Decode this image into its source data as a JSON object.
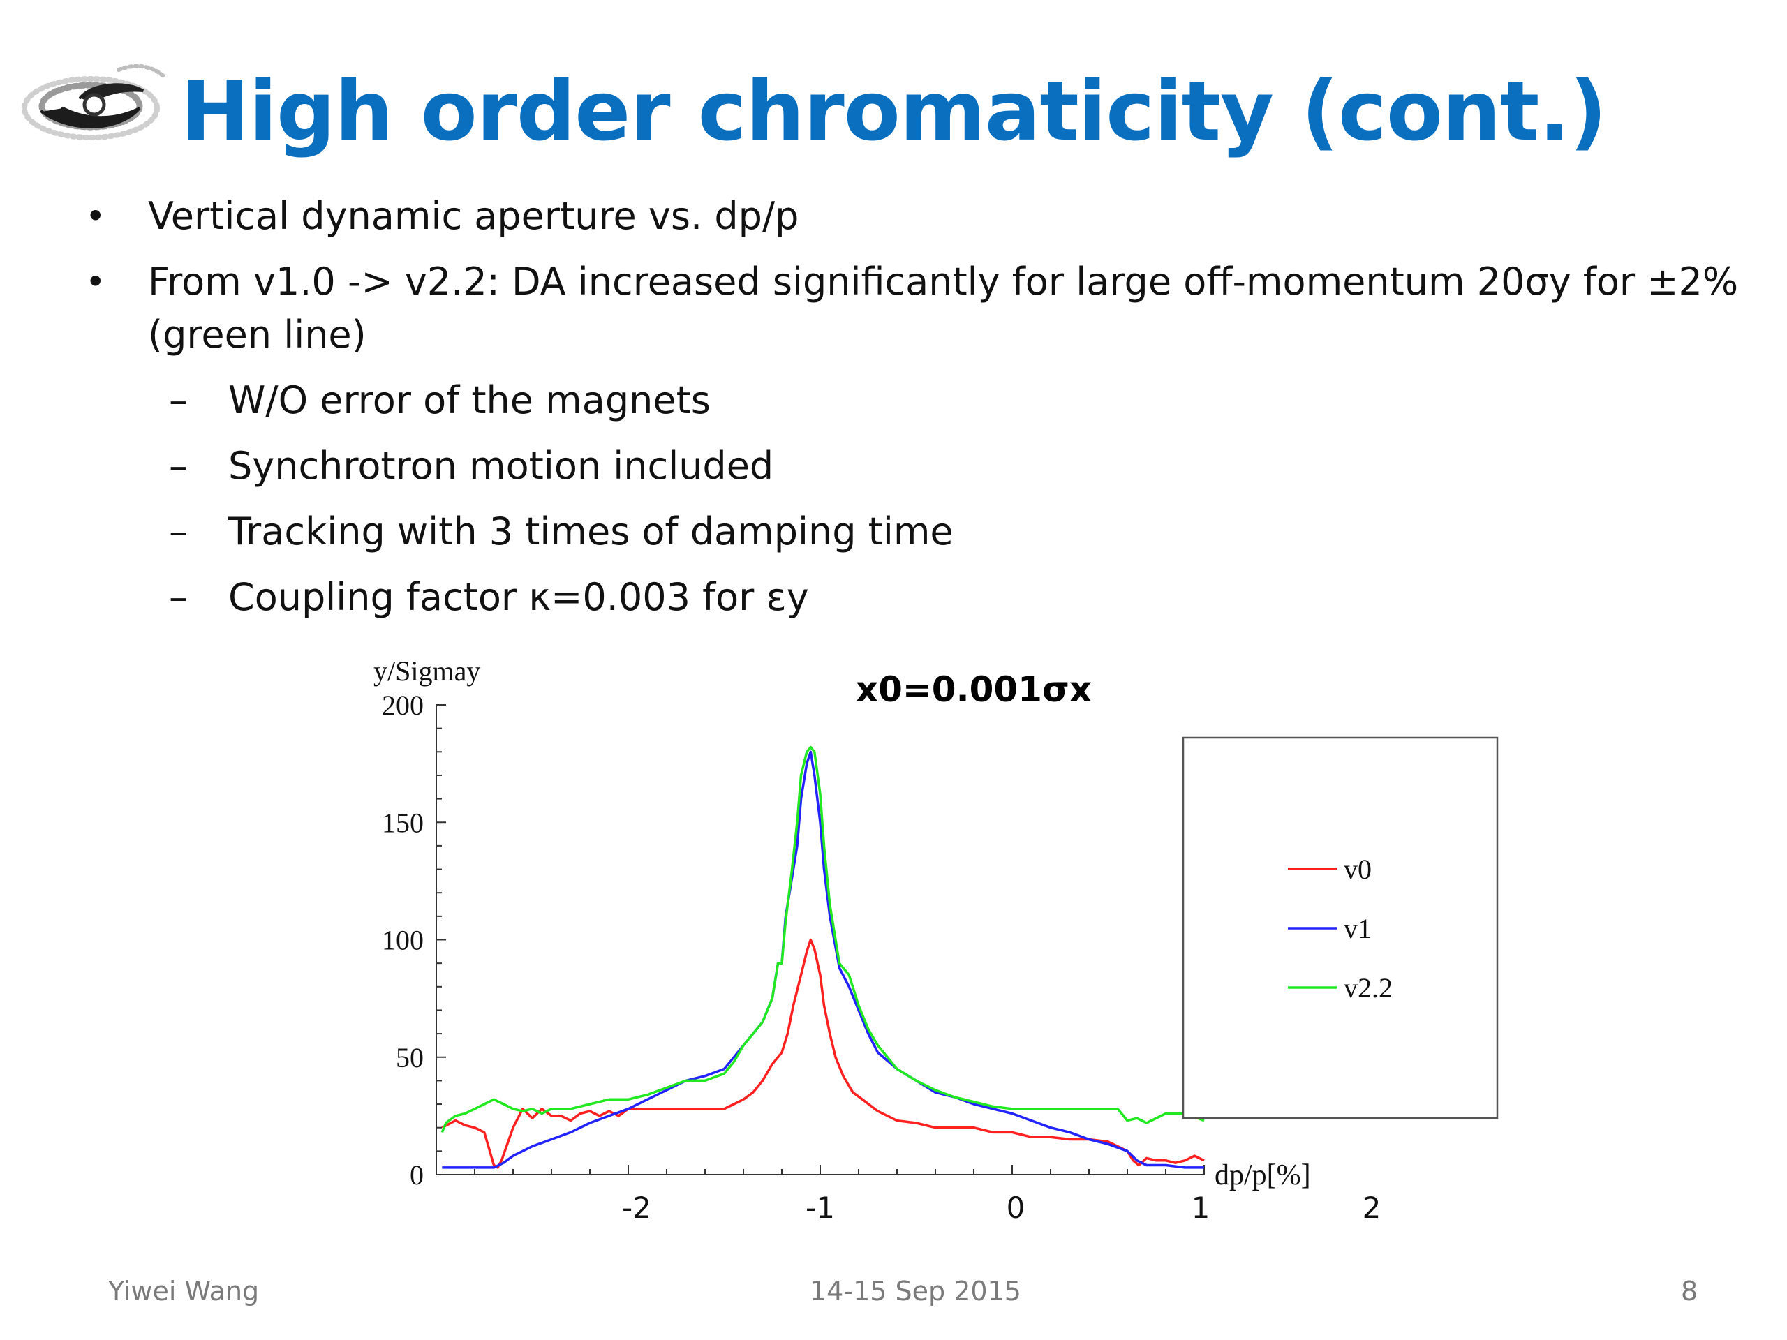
{
  "slide": {
    "title": "High order chromaticity (cont.)",
    "bullets": [
      {
        "text": "Vertical dynamic aperture vs. dp/p"
      },
      {
        "text": "From v1.0 -> v2.2: DA increased significantly for large off-momentum 20σy for ±2%",
        "continuation": "(green line)"
      }
    ],
    "sub_bullets": [
      "W/O error of the magnets",
      "Synchrotron motion included",
      "Tracking with 3 times of damping time",
      "Coupling factor κ=0.003 for εy"
    ],
    "bullet_mark": "•",
    "sub_mark": "–"
  },
  "footer": {
    "author": "Yiwei Wang",
    "date": "14-15 Sep 2015",
    "page": "8"
  },
  "colors": {
    "title": "#0b6fc0",
    "v0": "#ff2020",
    "v1": "#2323ff",
    "v2_2": "#22e822"
  },
  "chart_data": {
    "type": "line",
    "title": "x0=0.001σx",
    "xlabel": "dp/p[%]",
    "ylabel": "y/Sigmay",
    "xlim": [
      -3.0,
      1.0
    ],
    "ylim": [
      0,
      200
    ],
    "x_ticks": [
      -2,
      -1,
      0,
      1,
      2
    ],
    "y_ticks": [
      0,
      50,
      100,
      150,
      200
    ],
    "legend_position": "right",
    "series": [
      {
        "name": "v0",
        "color": "#ff2020",
        "x": [
          -2.97,
          -2.9,
          -2.85,
          -2.8,
          -2.75,
          -2.7,
          -2.68,
          -2.66,
          -2.6,
          -2.55,
          -2.5,
          -2.45,
          -2.4,
          -2.35,
          -2.3,
          -2.25,
          -2.2,
          -2.15,
          -2.1,
          -2.05,
          -2.0,
          -1.9,
          -1.8,
          -1.7,
          -1.6,
          -1.5,
          -1.45,
          -1.4,
          -1.35,
          -1.3,
          -1.25,
          -1.2,
          -1.17,
          -1.14,
          -1.1,
          -1.07,
          -1.05,
          -1.03,
          -1.0,
          -0.98,
          -0.95,
          -0.92,
          -0.88,
          -0.83,
          -0.78,
          -0.7,
          -0.6,
          -0.5,
          -0.4,
          -0.3,
          -0.2,
          -0.1,
          0.0,
          0.1,
          0.2,
          0.3,
          0.4,
          0.5,
          0.55,
          0.6,
          0.63,
          0.66,
          0.7,
          0.75,
          0.8,
          0.85,
          0.9,
          0.95,
          1.0
        ],
        "y": [
          20,
          23,
          21,
          20,
          18,
          4,
          3,
          6,
          20,
          28,
          24,
          28,
          25,
          25,
          23,
          26,
          27,
          25,
          27,
          25,
          28,
          28,
          28,
          28,
          28,
          28,
          30,
          32,
          35,
          40,
          47,
          52,
          60,
          72,
          85,
          95,
          100,
          96,
          85,
          72,
          60,
          50,
          42,
          35,
          32,
          27,
          23,
          22,
          20,
          20,
          20,
          18,
          18,
          16,
          16,
          15,
          15,
          14,
          12,
          10,
          6,
          4,
          7,
          6,
          6,
          5,
          6,
          8,
          6
        ]
      },
      {
        "name": "v1",
        "color": "#2323ff",
        "x": [
          -2.97,
          -2.8,
          -2.7,
          -2.65,
          -2.6,
          -2.55,
          -2.5,
          -2.4,
          -2.3,
          -2.2,
          -2.1,
          -2.0,
          -1.9,
          -1.8,
          -1.7,
          -1.6,
          -1.5,
          -1.45,
          -1.4,
          -1.35,
          -1.3,
          -1.25,
          -1.22,
          -1.2,
          -1.18,
          -1.15,
          -1.12,
          -1.1,
          -1.07,
          -1.05,
          -1.03,
          -1.0,
          -0.98,
          -0.95,
          -0.9,
          -0.85,
          -0.8,
          -0.75,
          -0.7,
          -0.6,
          -0.5,
          -0.4,
          -0.3,
          -0.2,
          -0.1,
          0.0,
          0.1,
          0.2,
          0.3,
          0.4,
          0.5,
          0.6,
          0.65,
          0.7,
          0.8,
          0.9,
          1.0
        ],
        "y": [
          3,
          3,
          3,
          5,
          8,
          10,
          12,
          15,
          18,
          22,
          25,
          28,
          32,
          36,
          40,
          42,
          45,
          50,
          55,
          60,
          65,
          75,
          90,
          90,
          110,
          125,
          140,
          160,
          175,
          180,
          170,
          150,
          130,
          110,
          88,
          80,
          70,
          60,
          52,
          45,
          40,
          35,
          33,
          30,
          28,
          26,
          23,
          20,
          18,
          15,
          13,
          10,
          6,
          4,
          4,
          3,
          3
        ]
      },
      {
        "name": "v2.2",
        "color": "#22e822",
        "x": [
          -2.97,
          -2.95,
          -2.9,
          -2.85,
          -2.8,
          -2.75,
          -2.7,
          -2.65,
          -2.6,
          -2.55,
          -2.5,
          -2.45,
          -2.4,
          -2.3,
          -2.2,
          -2.1,
          -2.0,
          -1.9,
          -1.8,
          -1.7,
          -1.6,
          -1.5,
          -1.45,
          -1.4,
          -1.35,
          -1.3,
          -1.25,
          -1.22,
          -1.2,
          -1.18,
          -1.15,
          -1.12,
          -1.1,
          -1.07,
          -1.05,
          -1.03,
          -1.0,
          -0.98,
          -0.95,
          -0.9,
          -0.85,
          -0.8,
          -0.75,
          -0.7,
          -0.6,
          -0.5,
          -0.4,
          -0.3,
          -0.2,
          -0.1,
          0.0,
          0.1,
          0.2,
          0.3,
          0.4,
          0.5,
          0.55,
          0.6,
          0.65,
          0.7,
          0.8,
          0.9,
          1.0
        ],
        "y": [
          18,
          22,
          25,
          26,
          28,
          30,
          32,
          30,
          28,
          27,
          28,
          26,
          28,
          28,
          30,
          32,
          32,
          34,
          37,
          40,
          40,
          43,
          48,
          55,
          60,
          65,
          75,
          90,
          90,
          108,
          128,
          150,
          170,
          180,
          182,
          180,
          162,
          140,
          115,
          90,
          85,
          72,
          62,
          55,
          45,
          40,
          36,
          33,
          31,
          29,
          28,
          28,
          28,
          28,
          28,
          28,
          28,
          23,
          24,
          22,
          26,
          26,
          23
        ]
      }
    ]
  }
}
